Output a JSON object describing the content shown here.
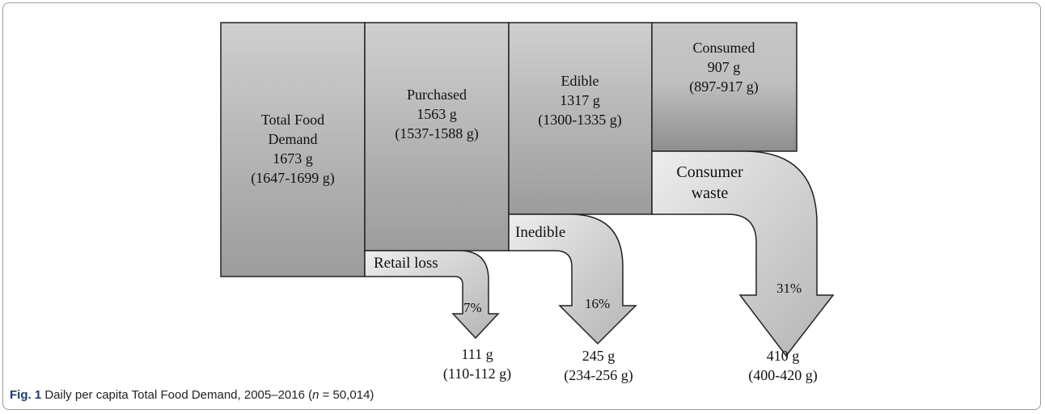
{
  "stages": [
    {
      "label": "Total Food Demand",
      "amount": "1673 g",
      "range": "(1647-1699 g)"
    },
    {
      "label": "Purchased",
      "amount": "1563 g",
      "range": "(1537-1588 g)"
    },
    {
      "label": "Edible",
      "amount": "1317 g",
      "range": "(1300-1335 g)"
    },
    {
      "label": "Consumed",
      "amount": "907 g",
      "range": "(897-917 g)"
    }
  ],
  "losses": [
    {
      "label": "Retail loss",
      "percent": "7%",
      "amount": "111 g",
      "range": "(110-112 g)"
    },
    {
      "label": "Inedible",
      "percent": "16%",
      "amount": "245 g",
      "range": "(234-256 g)"
    },
    {
      "label": "Consumer waste",
      "percent": "31%",
      "amount": "410 g",
      "range": "(400-420 g)"
    }
  ],
  "caption": {
    "figure": "Fig. 1",
    "text": "Daily per capita Total Food Demand, 2005–2016 (",
    "n": "n",
    "rest": " = 50,014)"
  }
}
